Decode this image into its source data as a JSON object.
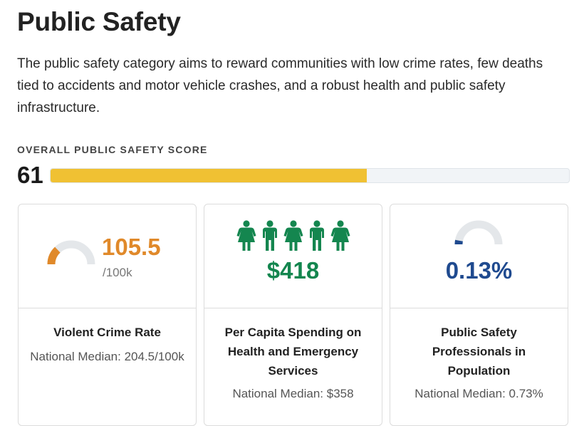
{
  "header": {
    "title": "Public Safety",
    "description": "The public safety category aims to reward communities with low crime rates, few deaths tied to accidents and motor vehicle crashes, and a robust health and public safety infrastructure."
  },
  "score": {
    "label": "OVERALL PUBLIC SAFETY SCORE",
    "value": "61",
    "fill_percent": 61,
    "fill_color": "#f0c133"
  },
  "cards": [
    {
      "value": "105.5",
      "unit": "/100k",
      "title": "Violent Crime Rate",
      "median": "National Median: 204.5/100k",
      "gauge_fraction": 0.26,
      "color": "#e0892a",
      "icon": "semicircle-gauge-icon"
    },
    {
      "value": "$418",
      "title": "Per Capita Spending on Health and Emergency Services",
      "median": "National Median: $358",
      "people_count": 5,
      "color": "#14864f",
      "icon": "person-icon"
    },
    {
      "value": "0.13%",
      "title": "Public Safety Professionals in Population",
      "median": "National Median: 0.73%",
      "gauge_fraction": 0.06,
      "color": "#1f4a8f",
      "icon": "semicircle-gauge-icon"
    }
  ]
}
